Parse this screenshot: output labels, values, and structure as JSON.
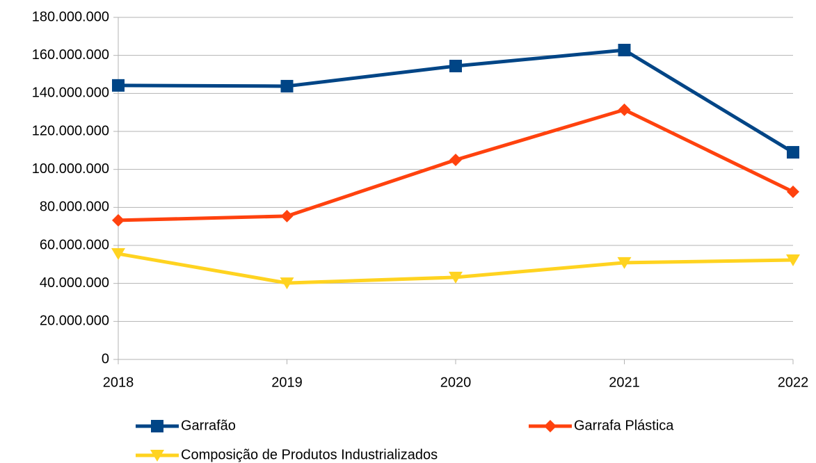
{
  "chart_data": {
    "type": "line",
    "categories": [
      "2018",
      "2019",
      "2020",
      "2021",
      "2022"
    ],
    "series": [
      {
        "name": "Garrafão",
        "color": "#004586",
        "marker": "square",
        "values": [
          144200000,
          143800000,
          154400000,
          162800000,
          109000000
        ]
      },
      {
        "name": "Garrafa Plástica",
        "color": "#ff420e",
        "marker": "diamond",
        "values": [
          73200000,
          75400000,
          105000000,
          131400000,
          88200000
        ]
      },
      {
        "name": "Composição de Produtos Industrializados",
        "color": "#ffd320",
        "marker": "triangle-down",
        "values": [
          55600000,
          40200000,
          43200000,
          50900000,
          52300000
        ]
      }
    ],
    "ylim": [
      0,
      180000000
    ],
    "yticks": [
      0,
      {
        "value": 20000000,
        "label": "20.000.000"
      },
      {
        "value": 40000000,
        "label": "40.000.000"
      },
      {
        "value": 60000000,
        "label": "60.000.000"
      },
      {
        "value": 80000000,
        "label": "80.000.000"
      },
      {
        "value": 100000000,
        "label": "100.000.000"
      },
      {
        "value": 120000000,
        "label": "120.000.000"
      },
      {
        "value": 140000000,
        "label": "140.000.000"
      },
      {
        "value": 160000000,
        "label": "160.000.000"
      },
      {
        "value": 180000000,
        "label": "180.000.000"
      }
    ],
    "grid": true
  }
}
